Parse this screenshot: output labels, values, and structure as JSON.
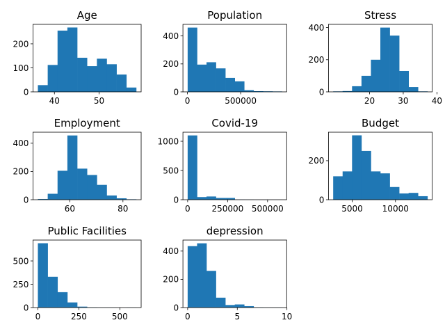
{
  "figure": {
    "background": "#ffffff",
    "bar_color": "#1f77b4"
  },
  "chart_data": [
    {
      "type": "bar",
      "title": "Age",
      "bin_edges": [
        36.3,
        38.5,
        40.7,
        42.9,
        45.1,
        47.3,
        49.5,
        51.7,
        53.9,
        56.1,
        58.3
      ],
      "values": [
        28,
        112,
        255,
        268,
        142,
        107,
        138,
        115,
        72,
        18
      ],
      "xlim": [
        35.2,
        59.4
      ],
      "ylim": [
        0,
        281
      ],
      "xticks": [
        40,
        50
      ],
      "yticks": [
        0,
        100,
        200
      ]
    },
    {
      "type": "bar",
      "title": "Population",
      "bin_edges": [
        2000,
        90600,
        179200,
        267800,
        356400,
        445000,
        533600,
        622200,
        710800,
        799400,
        888000
      ],
      "values": [
        460,
        195,
        212,
        168,
        100,
        75,
        12,
        5,
        4,
        3
      ],
      "xlim": [
        -42300,
        932300
      ],
      "ylim": [
        0,
        483
      ],
      "xticks": [
        0,
        500000
      ],
      "yticks": [
        0,
        200,
        400
      ]
    },
    {
      "type": "bar",
      "title": "Stress",
      "bin_edges": [
        9.2,
        12.0,
        14.8,
        17.6,
        20.4,
        23.2,
        26.0,
        28.8,
        31.6,
        34.4,
        37.2
      ],
      "values": [
        3,
        5,
        35,
        100,
        200,
        400,
        350,
        130,
        30,
        3
      ],
      "xlim": [
        7.8,
        38.6
      ],
      "ylim": [
        0,
        420
      ],
      "xticks": [
        20,
        30,
        40
      ],
      "yticks": [
        0,
        200,
        400
      ]
    },
    {
      "type": "bar",
      "title": "Employment",
      "bin_edges": [
        48.0,
        51.7,
        55.4,
        59.1,
        62.8,
        66.5,
        70.2,
        73.9,
        77.6,
        81.3,
        85.0
      ],
      "values": [
        5,
        42,
        205,
        455,
        220,
        175,
        105,
        30,
        10,
        3
      ],
      "xlim": [
        46.15,
        86.85
      ],
      "ylim": [
        0,
        478
      ],
      "xticks": [
        60,
        80
      ],
      "yticks": [
        0,
        200,
        400
      ]
    },
    {
      "type": "bar",
      "title": "Covid-19",
      "bin_edges": [
        0,
        59000,
        118000,
        177000,
        236000,
        295000,
        354000,
        413000,
        472000,
        531000,
        590000
      ],
      "values": [
        1100,
        45,
        55,
        30,
        30,
        3,
        2,
        1,
        1,
        1
      ],
      "xlim": [
        -29500,
        619500
      ],
      "ylim": [
        0,
        1155
      ],
      "xticks": [
        0,
        250000,
        500000
      ],
      "yticks": [
        0,
        500,
        1000
      ]
    },
    {
      "type": "bar",
      "title": "Budget",
      "bin_edges": [
        2800,
        3890,
        4980,
        6070,
        7160,
        8250,
        9340,
        10430,
        11520,
        12610,
        13700
      ],
      "values": [
        120,
        145,
        330,
        250,
        145,
        135,
        65,
        32,
        35,
        18
      ],
      "xlim": [
        2255,
        14245
      ],
      "ylim": [
        0,
        346
      ],
      "xticks": [
        5000,
        10000
      ],
      "yticks": [
        0,
        200
      ]
    },
    {
      "type": "bar",
      "title": "Public Facilities",
      "bin_edges": [
        0,
        60,
        120,
        180,
        240,
        300,
        360,
        420,
        480,
        540,
        600
      ],
      "values": [
        690,
        330,
        165,
        55,
        10,
        3,
        1,
        1,
        0,
        1
      ],
      "xlim": [
        -30,
        630
      ],
      "ylim": [
        0,
        724
      ],
      "xticks": [
        0,
        250,
        500
      ],
      "yticks": [
        0,
        250,
        500
      ]
    },
    {
      "type": "bar",
      "title": "depression",
      "bin_edges": [
        0,
        0.95,
        1.9,
        2.85,
        3.8,
        4.75,
        5.7,
        6.65,
        7.6,
        8.55,
        9.5
      ],
      "values": [
        435,
        455,
        260,
        70,
        18,
        22,
        10,
        2,
        1,
        1
      ],
      "xlim": [
        -0.475,
        9.975
      ],
      "ylim": [
        0,
        478
      ],
      "xticks": [
        0,
        5,
        10
      ],
      "yticks": [
        0,
        200,
        400
      ]
    }
  ]
}
